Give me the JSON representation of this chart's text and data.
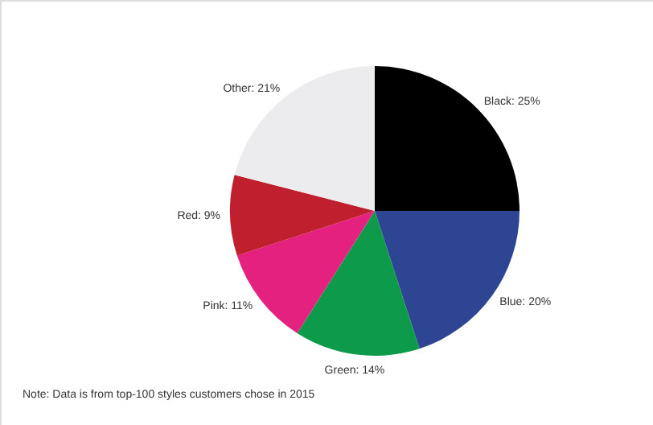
{
  "chart_data": {
    "type": "pie",
    "categories": [
      "Black",
      "Blue",
      "Green",
      "Pink",
      "Red",
      "Other"
    ],
    "values": [
      25,
      20,
      14,
      11,
      9,
      21
    ],
    "value_labels": [
      "25%",
      "20%",
      "14%",
      "11%",
      "9%",
      "21%"
    ],
    "colors": [
      "#000000",
      "#2e4593",
      "#0d9a4a",
      "#e5217f",
      "#c0202e",
      "#ececee"
    ],
    "annotations": [
      "Note: Data is from top-100 styles customers chose in 2015"
    ]
  }
}
